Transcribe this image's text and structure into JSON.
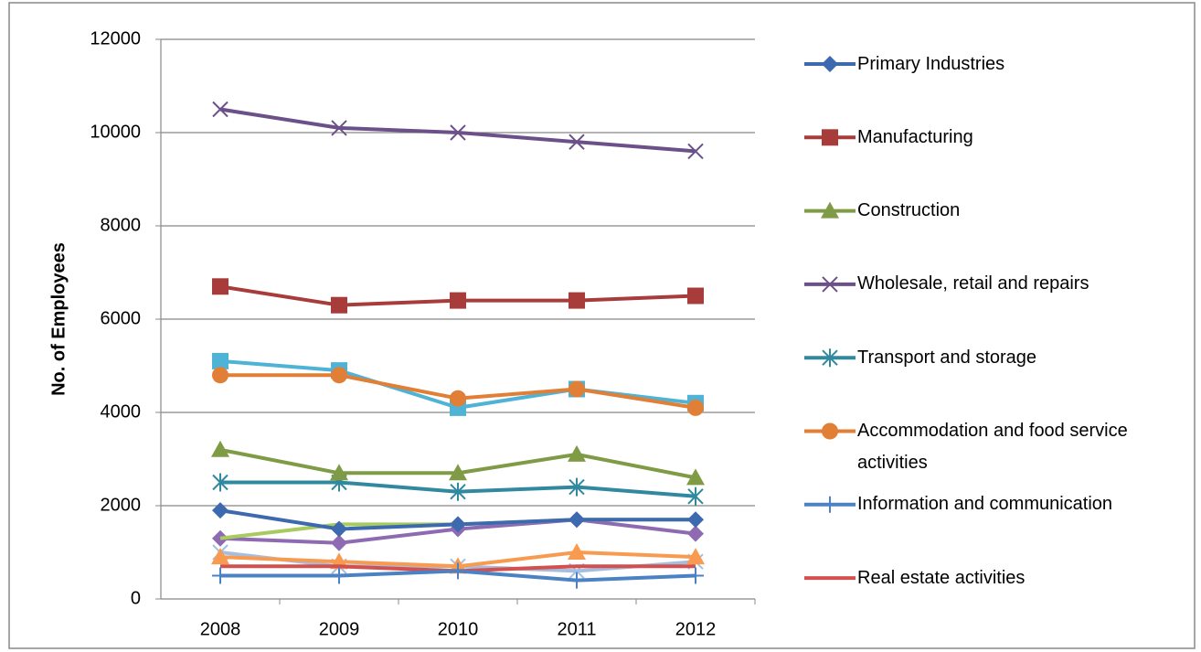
{
  "chart_data": {
    "type": "line",
    "y_label": "No. of Employees",
    "categories": [
      "2008",
      "2009",
      "2010",
      "2011",
      "2012"
    ],
    "ylim": [
      0,
      12000
    ],
    "yticks": [
      0,
      2000,
      4000,
      6000,
      8000,
      10000,
      12000
    ],
    "grid": true,
    "series": [
      {
        "name": "Primary Industries",
        "color": "#3D6AAE",
        "marker": "diamond",
        "values": [
          1900,
          1500,
          1600,
          1700,
          1700
        ]
      },
      {
        "name": "Manufacturing",
        "color": "#A83C3A",
        "marker": "square",
        "values": [
          6700,
          6300,
          6400,
          6400,
          6500
        ]
      },
      {
        "name": "Construction",
        "color": "#7F9B46",
        "marker": "triangle",
        "values": [
          3200,
          2700,
          2700,
          3100,
          2600
        ]
      },
      {
        "name": "Wholesale, retail and repairs",
        "color": "#6B5089",
        "marker": "x",
        "values": [
          10500,
          10100,
          10000,
          9800,
          9600
        ]
      },
      {
        "name": "Transport and storage",
        "color": "#31899F",
        "marker": "star",
        "values": [
          2500,
          2500,
          2300,
          2400,
          2200
        ]
      },
      {
        "name": "Accommodation and food service activities",
        "color": "#E07F35",
        "marker": "circle",
        "values": [
          4800,
          4800,
          4300,
          4500,
          4100
        ]
      },
      {
        "name": "Information and communication",
        "color": "#4A82C4",
        "marker": "plus",
        "values": [
          500,
          500,
          600,
          400,
          500
        ]
      },
      {
        "name": "Real estate activities",
        "color": "#D2514E",
        "marker": "none",
        "values": [
          700,
          700,
          600,
          700,
          700
        ]
      },
      {
        "color": "#4FB3D6",
        "marker": "square",
        "values": [
          5100,
          4900,
          4100,
          4500,
          4200
        ]
      },
      {
        "color": "#A7CB5E",
        "marker": "none",
        "values": [
          1300,
          1600,
          1600,
          1700,
          1700
        ]
      },
      {
        "color": "#8E6AB2",
        "marker": "diamond",
        "values": [
          1300,
          1200,
          1500,
          1700,
          1400
        ]
      },
      {
        "color": "#F89B50",
        "marker": "triangle",
        "values": [
          900,
          800,
          700,
          1000,
          900
        ]
      },
      {
        "color": "#A5BEE0",
        "marker": "x",
        "values": [
          1000,
          700,
          700,
          600,
          800
        ]
      }
    ]
  }
}
